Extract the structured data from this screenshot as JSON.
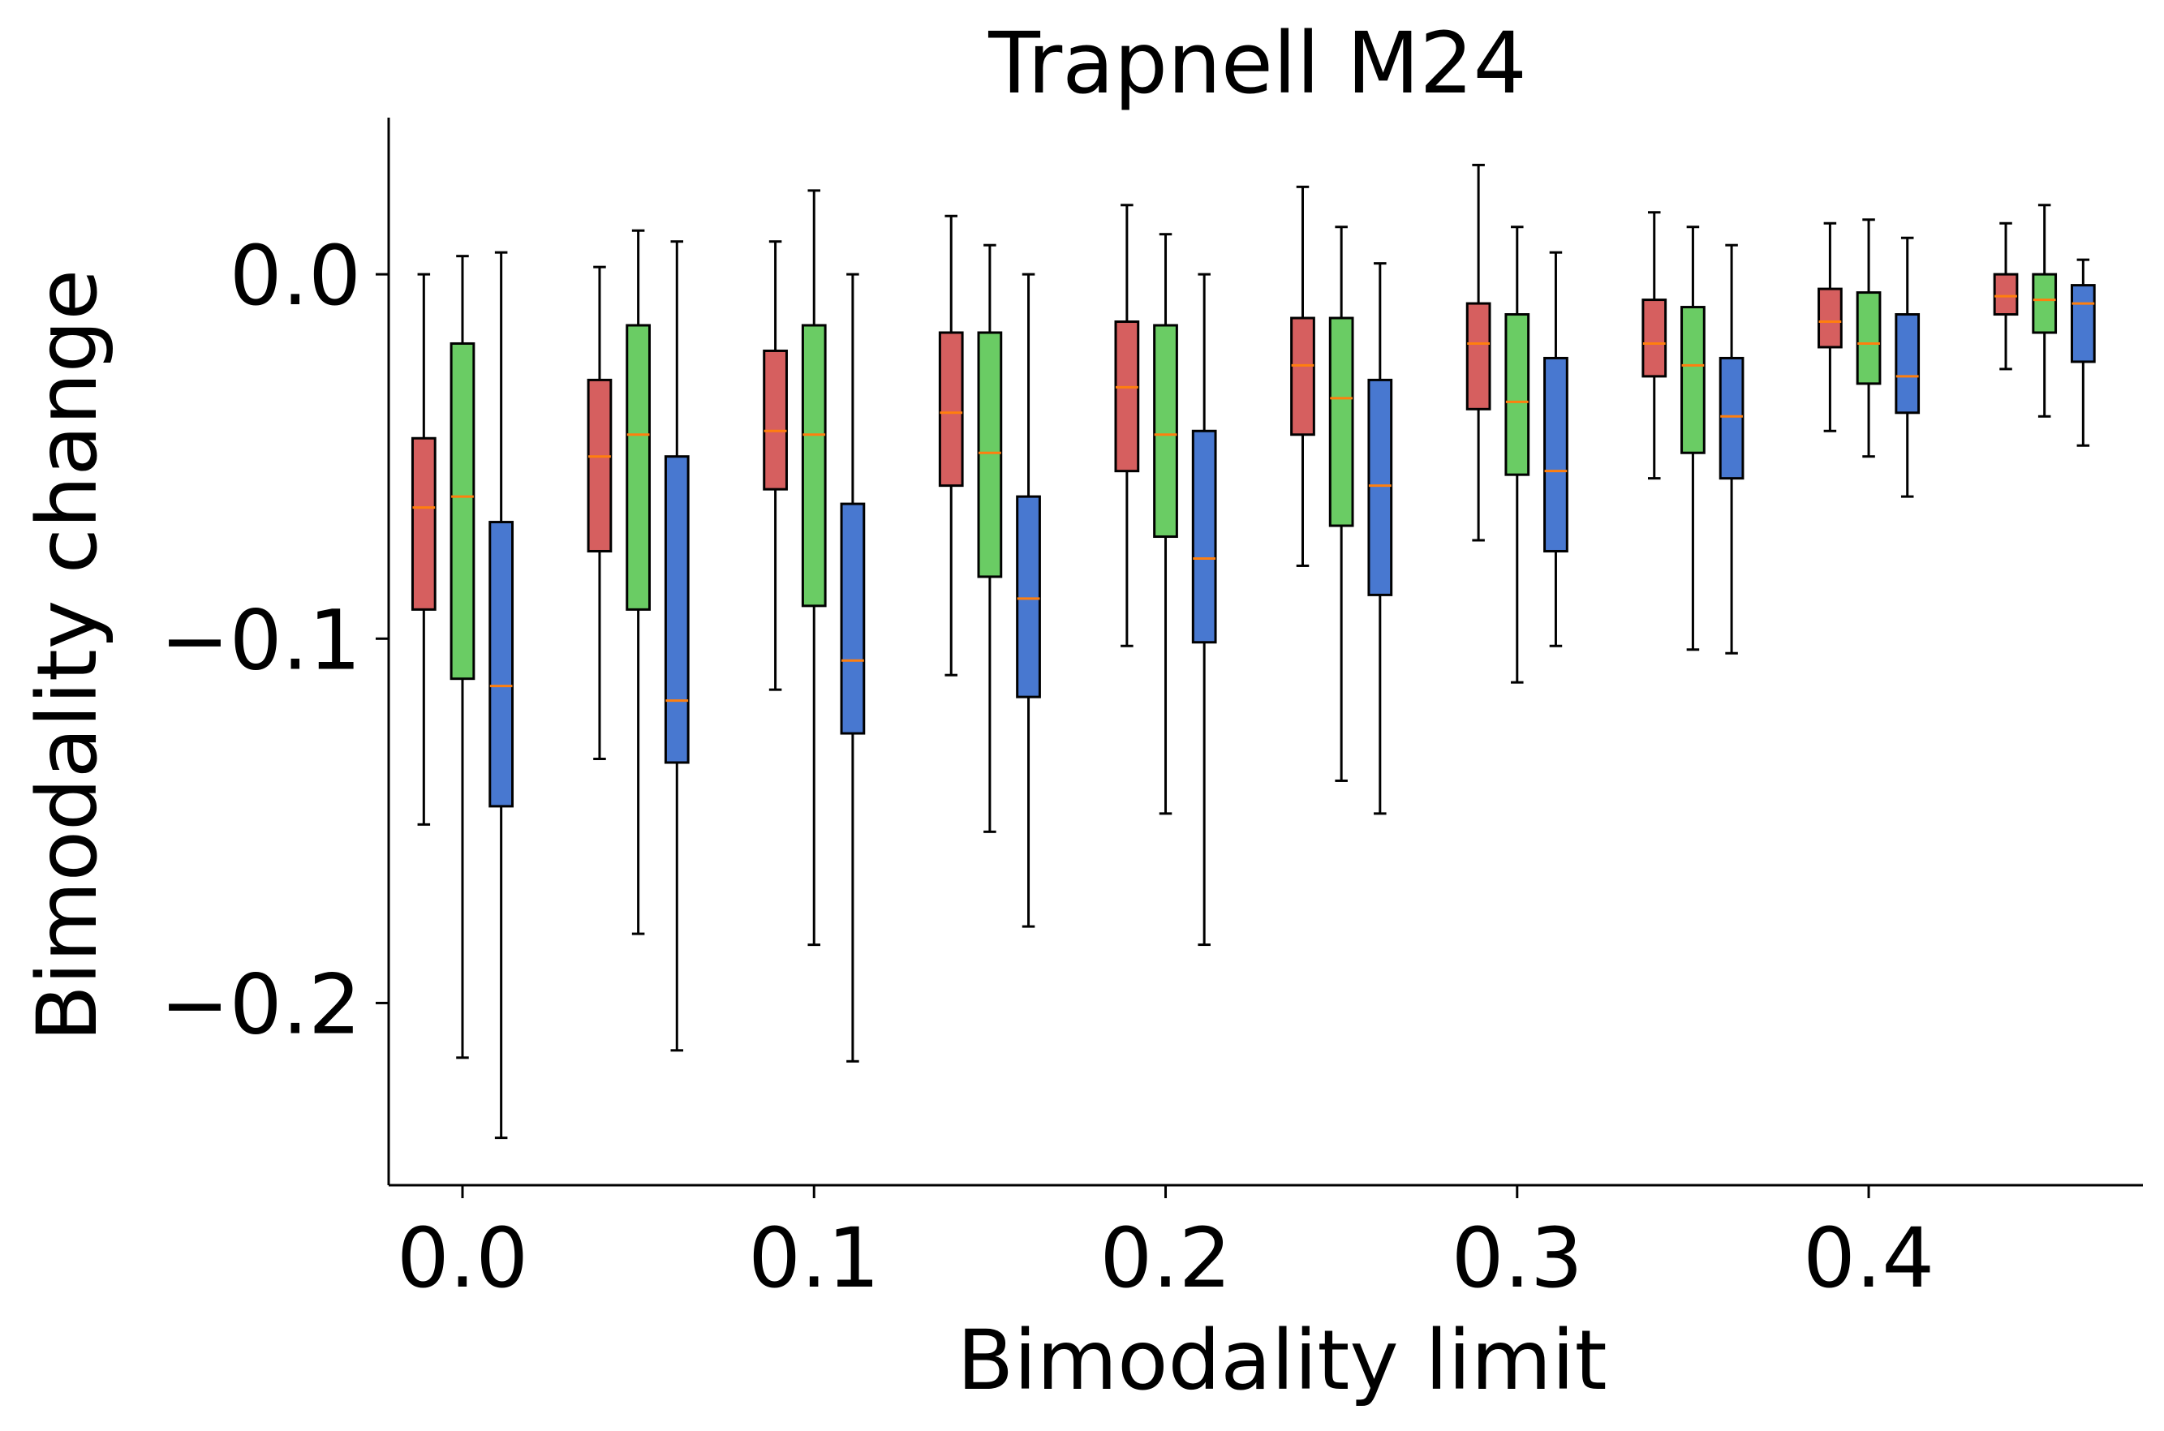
{
  "chart_data": {
    "type": "box",
    "title": "Trapnell M24",
    "xlabel": "Bimodality limit",
    "ylabel": "Bimodality change",
    "xlim": [
      -0.021,
      0.478
    ],
    "ylim": [
      -0.25,
      0.043
    ],
    "xticks": [
      {
        "value": 0.0,
        "label": "0.0"
      },
      {
        "value": 0.1,
        "label": "0.1"
      },
      {
        "value": 0.2,
        "label": "0.2"
      },
      {
        "value": 0.3,
        "label": "0.3"
      },
      {
        "value": 0.4,
        "label": "0.4"
      }
    ],
    "yticks": [
      {
        "value": 0.0,
        "label": "0.0"
      },
      {
        "value": -0.1,
        "label": "−0.1"
      },
      {
        "value": -0.2,
        "label": "−0.2"
      }
    ],
    "grid": false,
    "colors": {
      "red": "#d65f5f",
      "green": "#6acc64",
      "blue": "#4878d0",
      "median": "#ff7f0e"
    },
    "groups": [
      {
        "x": 0.0,
        "boxes": [
          {
            "color": "red",
            "whislo": -0.151,
            "q1": -0.092,
            "med": -0.064,
            "q3": -0.045,
            "whishi": 0.0
          },
          {
            "color": "green",
            "whislo": -0.215,
            "q1": -0.111,
            "med": -0.061,
            "q3": -0.019,
            "whishi": 0.005
          },
          {
            "color": "blue",
            "whislo": -0.237,
            "q1": -0.146,
            "med": -0.113,
            "q3": -0.068,
            "whishi": 0.006
          }
        ]
      },
      {
        "x": 0.05,
        "boxes": [
          {
            "color": "red",
            "whislo": -0.133,
            "q1": -0.076,
            "med": -0.05,
            "q3": -0.029,
            "whishi": 0.002
          },
          {
            "color": "green",
            "whislo": -0.181,
            "q1": -0.092,
            "med": -0.044,
            "q3": -0.014,
            "whishi": 0.012
          },
          {
            "color": "blue",
            "whislo": -0.213,
            "q1": -0.134,
            "med": -0.117,
            "q3": -0.05,
            "whishi": 0.009
          }
        ]
      },
      {
        "x": 0.1,
        "boxes": [
          {
            "color": "red",
            "whislo": -0.114,
            "q1": -0.059,
            "med": -0.043,
            "q3": -0.021,
            "whishi": 0.009
          },
          {
            "color": "green",
            "whislo": -0.184,
            "q1": -0.091,
            "med": -0.044,
            "q3": -0.014,
            "whishi": 0.023
          },
          {
            "color": "blue",
            "whislo": -0.216,
            "q1": -0.126,
            "med": -0.106,
            "q3": -0.063,
            "whishi": 0.0
          }
        ]
      },
      {
        "x": 0.15,
        "boxes": [
          {
            "color": "red",
            "whislo": -0.11,
            "q1": -0.058,
            "med": -0.038,
            "q3": -0.016,
            "whishi": 0.016
          },
          {
            "color": "green",
            "whislo": -0.153,
            "q1": -0.083,
            "med": -0.049,
            "q3": -0.016,
            "whishi": 0.008
          },
          {
            "color": "blue",
            "whislo": -0.179,
            "q1": -0.116,
            "med": -0.089,
            "q3": -0.061,
            "whishi": 0.0
          }
        ]
      },
      {
        "x": 0.2,
        "boxes": [
          {
            "color": "red",
            "whislo": -0.102,
            "q1": -0.054,
            "med": -0.031,
            "q3": -0.013,
            "whishi": 0.019
          },
          {
            "color": "green",
            "whislo": -0.148,
            "q1": -0.072,
            "med": -0.044,
            "q3": -0.014,
            "whishi": 0.011
          },
          {
            "color": "blue",
            "whislo": -0.184,
            "q1": -0.101,
            "med": -0.078,
            "q3": -0.043,
            "whishi": 0.0
          }
        ]
      },
      {
        "x": 0.25,
        "boxes": [
          {
            "color": "red",
            "whislo": -0.08,
            "q1": -0.044,
            "med": -0.025,
            "q3": -0.012,
            "whishi": 0.024
          },
          {
            "color": "green",
            "whislo": -0.139,
            "q1": -0.069,
            "med": -0.034,
            "q3": -0.012,
            "whishi": 0.013
          },
          {
            "color": "blue",
            "whislo": -0.148,
            "q1": -0.088,
            "med": -0.058,
            "q3": -0.029,
            "whishi": 0.003
          }
        ]
      },
      {
        "x": 0.3,
        "boxes": [
          {
            "color": "red",
            "whislo": -0.073,
            "q1": -0.037,
            "med": -0.019,
            "q3": -0.008,
            "whishi": 0.03
          },
          {
            "color": "green",
            "whislo": -0.112,
            "q1": -0.055,
            "med": -0.035,
            "q3": -0.011,
            "whishi": 0.013
          },
          {
            "color": "blue",
            "whislo": -0.102,
            "q1": -0.076,
            "med": -0.054,
            "q3": -0.023,
            "whishi": 0.006
          }
        ]
      },
      {
        "x": 0.35,
        "boxes": [
          {
            "color": "red",
            "whislo": -0.056,
            "q1": -0.028,
            "med": -0.019,
            "q3": -0.007,
            "whishi": 0.017
          },
          {
            "color": "green",
            "whislo": -0.103,
            "q1": -0.049,
            "med": -0.025,
            "q3": -0.009,
            "whishi": 0.013
          },
          {
            "color": "blue",
            "whislo": -0.104,
            "q1": -0.056,
            "med": -0.039,
            "q3": -0.023,
            "whishi": 0.008
          }
        ]
      },
      {
        "x": 0.4,
        "boxes": [
          {
            "color": "red",
            "whislo": -0.043,
            "q1": -0.02,
            "med": -0.013,
            "q3": -0.004,
            "whishi": 0.014
          },
          {
            "color": "green",
            "whislo": -0.05,
            "q1": -0.03,
            "med": -0.019,
            "q3": -0.005,
            "whishi": 0.015
          },
          {
            "color": "blue",
            "whislo": -0.061,
            "q1": -0.038,
            "med": -0.028,
            "q3": -0.011,
            "whishi": 0.01
          }
        ]
      },
      {
        "x": 0.45,
        "boxes": [
          {
            "color": "red",
            "whislo": -0.026,
            "q1": -0.011,
            "med": -0.006,
            "q3": 0.0,
            "whishi": 0.014
          },
          {
            "color": "green",
            "whislo": -0.039,
            "q1": -0.016,
            "med": -0.007,
            "q3": 0.0,
            "whishi": 0.019
          },
          {
            "color": "blue",
            "whislo": -0.047,
            "q1": -0.024,
            "med": -0.008,
            "q3": -0.003,
            "whishi": 0.004
          }
        ]
      }
    ]
  }
}
